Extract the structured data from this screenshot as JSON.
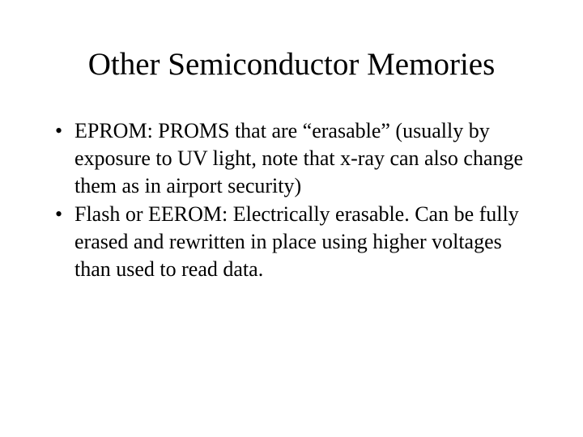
{
  "title": "Other Semiconductor Memories",
  "bullets": [
    "EPROM: PROMS that are “erasable” (usually by exposure to UV light, note that x-ray can also change them as in airport security)",
    "Flash or EEROM: Electrically erasable. Can be fully erased and rewritten in place using higher voltages than used to read data."
  ],
  "colors": {
    "background": "#ffffff",
    "text": "#000000"
  },
  "typography": {
    "title_fontsize": 39,
    "body_fontsize": 26,
    "font_family": "Times New Roman"
  }
}
